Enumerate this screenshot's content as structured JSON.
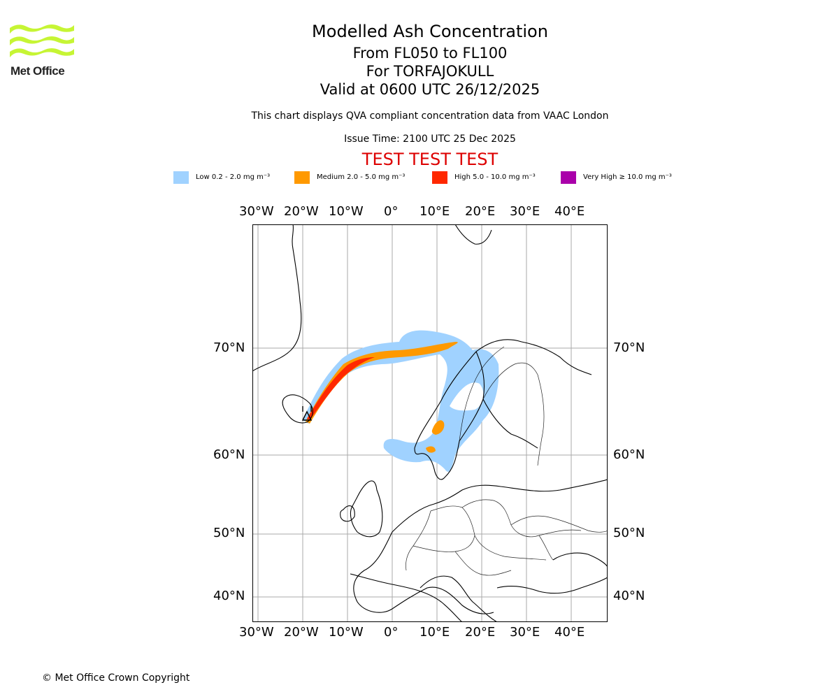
{
  "logo": {
    "text": "Met Office",
    "color": "#c6f534"
  },
  "title": {
    "main": "Modelled Ash Concentration",
    "level": "From FL050 to FL100",
    "volcano": "For TORFAJOKULL",
    "valid": "Valid at 0600 UTC 26/12/2025",
    "description": "This chart displays QVA compliant concentration data from VAAC London",
    "issue": "Issue Time: 2100 UTC 25 Dec 2025",
    "test_banner": "TEST TEST TEST"
  },
  "legend": [
    {
      "label": "Low 0.2 - 2.0 mg m⁻³",
      "color": "#a0d2ff"
    },
    {
      "label": "Medium 2.0 - 5.0 mg m⁻³",
      "color": "#ff9900"
    },
    {
      "label": "High 5.0 - 10.0 mg m⁻³",
      "color": "#ff2800"
    },
    {
      "label": "Very High  ≥  10.0 mg m⁻³",
      "color": "#aa00aa"
    }
  ],
  "axes": {
    "longitude_labels": [
      "30°W",
      "20°W",
      "10°W",
      "0°",
      "10°E",
      "20°E",
      "30°E",
      "40°E"
    ],
    "latitude_labels": [
      "70°N",
      "60°N",
      "50°N",
      "40°N"
    ]
  },
  "map_data": {
    "projection": "stereographic",
    "volcano_name": "TORFAJOKULL",
    "concentration_levels": [
      "Low",
      "Medium",
      "High",
      "Very High"
    ]
  },
  "footer": {
    "copyright": "© Met Office Crown Copyright"
  }
}
